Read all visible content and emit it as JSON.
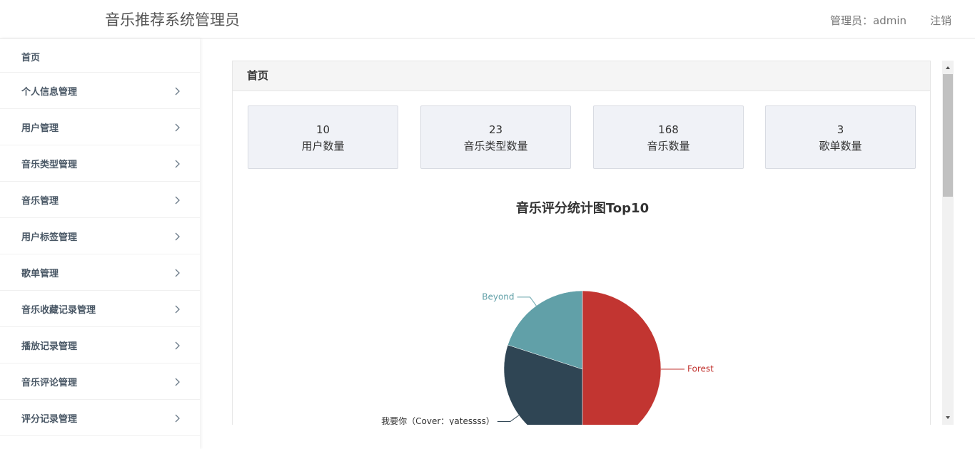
{
  "header": {
    "title": "音乐推荐系统管理员",
    "user": "管理员：admin",
    "logout": "注销"
  },
  "sidebar": {
    "items": [
      "首页",
      "个人信息管理",
      "用户管理",
      "音乐类型管理",
      "音乐管理",
      "用户标签管理",
      "歌单管理",
      "音乐收藏记录管理",
      "播放记录管理",
      "音乐评论管理",
      "评分记录管理"
    ]
  },
  "panel": {
    "title": "首页"
  },
  "stats": [
    {
      "value": 10,
      "label": "用户数量"
    },
    {
      "value": 23,
      "label": "音乐类型数量"
    },
    {
      "value": 168,
      "label": "音乐数量"
    },
    {
      "value": 3,
      "label": "歌单数量"
    }
  ],
  "chart_data": {
    "type": "pie",
    "title": "音乐评分统计图Top10",
    "categories": [
      "Forest",
      "我要你（Cover：yatessss）",
      "Beyond"
    ],
    "values": [
      5,
      3,
      2
    ],
    "colors": [
      "#c23531",
      "#2f4554",
      "#61a0a8"
    ]
  }
}
